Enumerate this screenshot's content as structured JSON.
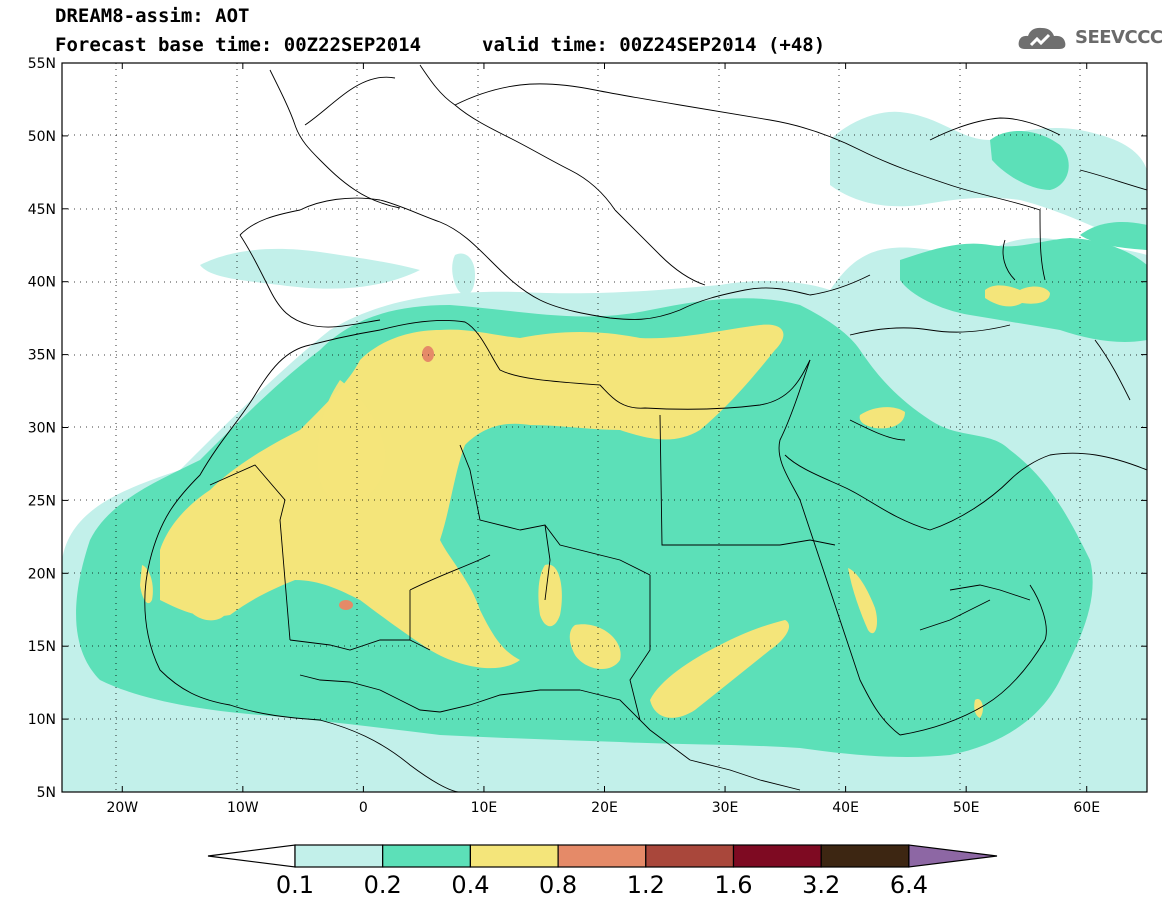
{
  "title": {
    "line1": "DREAM8-assim: AOT",
    "base_time": "Forecast base time: 00Z22SEP2014",
    "valid_time": "valid time: 00Z24SEP2014 (+48)"
  },
  "logo": {
    "text": "SEEVCCC",
    "icon": "cloud-icon"
  },
  "map": {
    "lon_range": [
      -25,
      65
    ],
    "lat_range": [
      5,
      55
    ],
    "lat_ticks": [
      "5N",
      "10N",
      "15N",
      "20N",
      "25N",
      "30N",
      "35N",
      "40N",
      "45N",
      "50N",
      "55N"
    ],
    "lon_ticks": [
      "20W",
      "10W",
      "0",
      "10E",
      "20E",
      "30E",
      "40E",
      "50E",
      "60E"
    ],
    "grid": true
  },
  "colorbar": {
    "levels": [
      "0.1",
      "0.2",
      "0.4",
      "0.8",
      "1.2",
      "1.6",
      "3.2",
      "6.4"
    ],
    "colors": {
      "c0_1": "#c2f0ea",
      "c0_2": "#5ce0b8",
      "c0_4": "#f4e57a",
      "c0_8": "#e58a68",
      "c1_2": "#a9473b",
      "c1_6": "#7e0a22",
      "c3_2": "#3d2612",
      "c6_4": "#8d67a4"
    }
  }
}
